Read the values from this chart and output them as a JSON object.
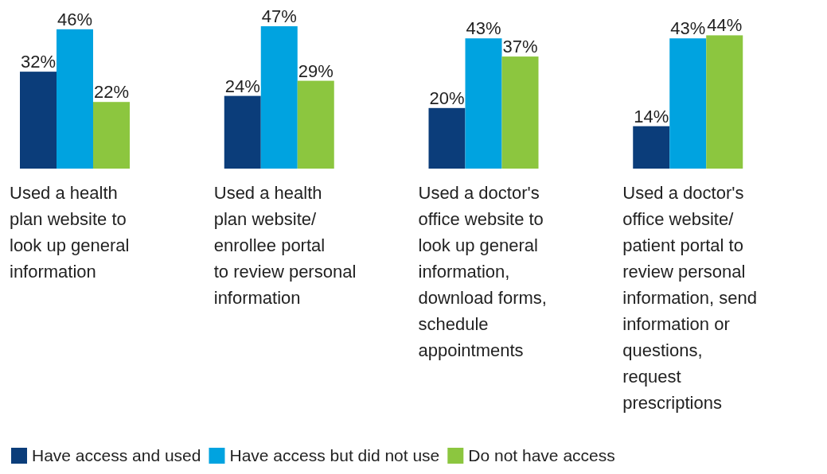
{
  "chart_data": {
    "type": "bar",
    "categories": [
      "Used a health\nplan website to\nlook up general\ninformation",
      "Used a health\nplan website/\nenrollee portal\nto review personal\ninformation",
      "Used a doctor's\noffice website to\nlook up general\ninformation,\ndownload forms,\nschedule\nappointments",
      "Used a doctor's\noffice website/\npatient portal to\nreview personal\ninformation, send\ninformation or\nquestions,\nrequest\nprescriptions"
    ],
    "series": [
      {
        "name": "Have access and used",
        "color": "#0b3d7a",
        "values": [
          32,
          24,
          20,
          14
        ],
        "value_labels": [
          "32%",
          "24%",
          "20%",
          "14%"
        ]
      },
      {
        "name": "Have access but did not use",
        "color": "#00a3e0",
        "values": [
          46,
          47,
          43,
          43
        ],
        "value_labels": [
          "46%",
          "47%",
          "43%",
          "43%"
        ]
      },
      {
        "name": "Do not have access",
        "color": "#8cc63f",
        "values": [
          22,
          29,
          37,
          44
        ],
        "value_labels": [
          "22%",
          "29%",
          "37%",
          "44%"
        ]
      }
    ],
    "legend": "bottom"
  }
}
